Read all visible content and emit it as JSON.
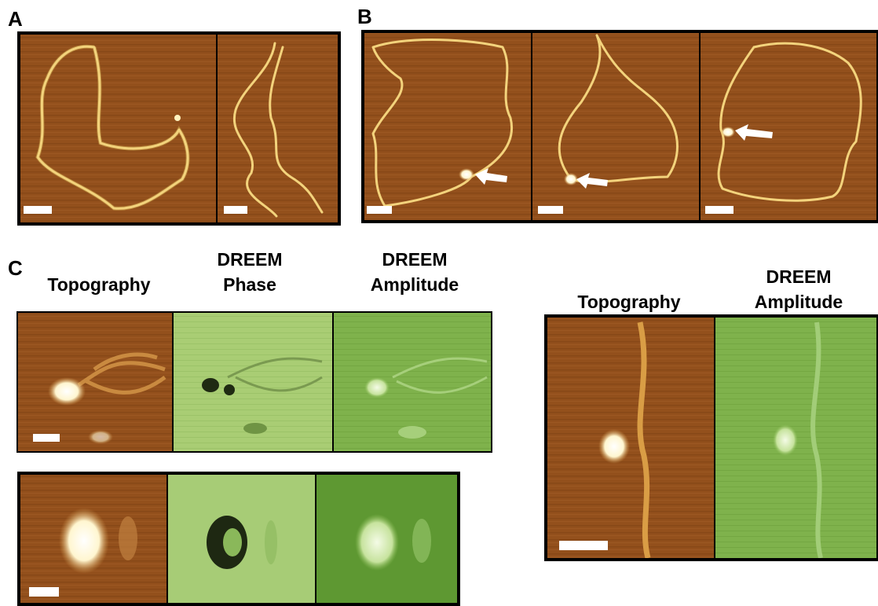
{
  "panels": {
    "a": {
      "label": "A"
    },
    "b": {
      "label": "B"
    },
    "c": {
      "label": "C",
      "left_headers": [
        [
          "Topography"
        ],
        [
          "DREEM",
          "Phase"
        ],
        [
          "DREEM",
          "Amplitude"
        ]
      ],
      "right_headers": [
        [
          "Topography"
        ],
        [
          "DREEM",
          "Amplitude"
        ]
      ]
    }
  }
}
